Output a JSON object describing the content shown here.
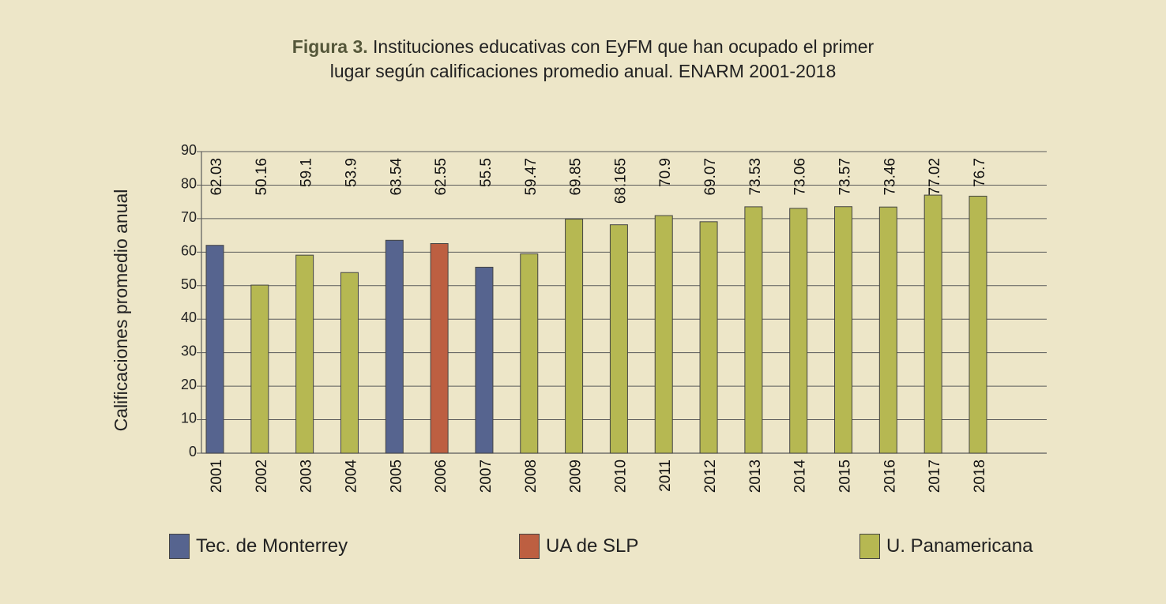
{
  "chart_data": {
    "type": "bar",
    "title_bold": "Figura 3.",
    "title_line1": "Instituciones educativas con EyFM que han ocupado el primer",
    "title_line2": "lugar según calificaciones promedio anual. ENARM 2001-2018",
    "ylabel": "Calificaciones promedio anual",
    "xlabel": "",
    "ylim": [
      0,
      90
    ],
    "yticks": [
      0,
      10,
      20,
      30,
      40,
      50,
      60,
      70,
      80,
      90
    ],
    "grid": true,
    "categories": [
      "2001",
      "2002",
      "2003",
      "2004",
      "2005",
      "2006",
      "2007",
      "2008",
      "2009",
      "2010",
      "2011",
      "2012",
      "2013",
      "2014",
      "2015",
      "2016",
      "2017",
      "2018"
    ],
    "values": [
      62.03,
      50.16,
      59.1,
      53.9,
      63.54,
      62.55,
      55.5,
      59.47,
      69.85,
      68.165,
      70.9,
      69.07,
      73.53,
      73.06,
      73.57,
      73.46,
      77.02,
      76.7
    ],
    "value_labels": [
      "62.03",
      "50.16",
      "59.1",
      "53.9",
      "63.54",
      "62.55",
      "55.5",
      "59.47",
      "69.85",
      "68.165",
      "70.9",
      "69.07",
      "73.53",
      "73.06",
      "73.57",
      "73.46",
      "77.02",
      "76.7"
    ],
    "institutions": [
      "Tec. de Monterrey",
      "U. Panamericana",
      "U. Panamericana",
      "U. Panamericana",
      "Tec. de Monterrey",
      "UA de SLP",
      "Tec. de Monterrey",
      "U. Panamericana",
      "U. Panamericana",
      "U. Panamericana",
      "U. Panamericana",
      "U. Panamericana",
      "U. Panamericana",
      "U. Panamericana",
      "U. Panamericana",
      "U. Panamericana",
      "U. Panamericana",
      "U. Panamericana"
    ],
    "legend": [
      {
        "name": "Tec. de Monterrey",
        "color": "#56648f"
      },
      {
        "name": "UA de SLP",
        "color": "#bd5f41"
      },
      {
        "name": "U. Panamericana",
        "color": "#b6b852"
      }
    ],
    "legend_position": "bottom"
  }
}
